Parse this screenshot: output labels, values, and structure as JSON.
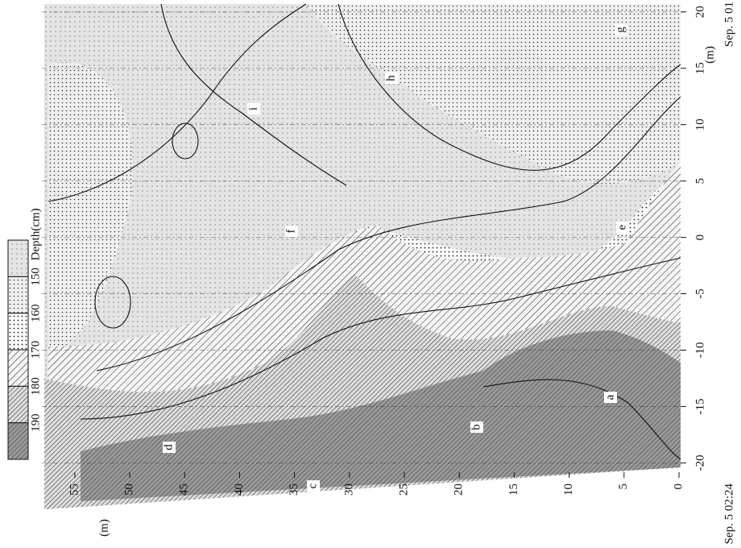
{
  "chart_data": {
    "type": "contour",
    "x_label": "(m)",
    "y_label": "(m)",
    "xlim": [
      58,
      0
    ],
    "xticks": [
      0,
      5,
      10,
      15,
      20,
      25,
      30,
      35,
      40,
      45,
      50,
      55
    ],
    "ylim": [
      -20.4,
      20.7
    ],
    "yticks": [
      -20,
      -15,
      -10,
      -5,
      0,
      5,
      10,
      15,
      20
    ],
    "levels": [
      150,
      160,
      170,
      180,
      190
    ],
    "level_unit": "Depth(cm)",
    "time_start": "Sep. 5 01",
    "time_end": "Sep. 5 02:24",
    "annotations": [
      "a",
      "b",
      "c",
      "d",
      "e",
      "f",
      "g",
      "h",
      "i"
    ],
    "grid": true
  }
}
